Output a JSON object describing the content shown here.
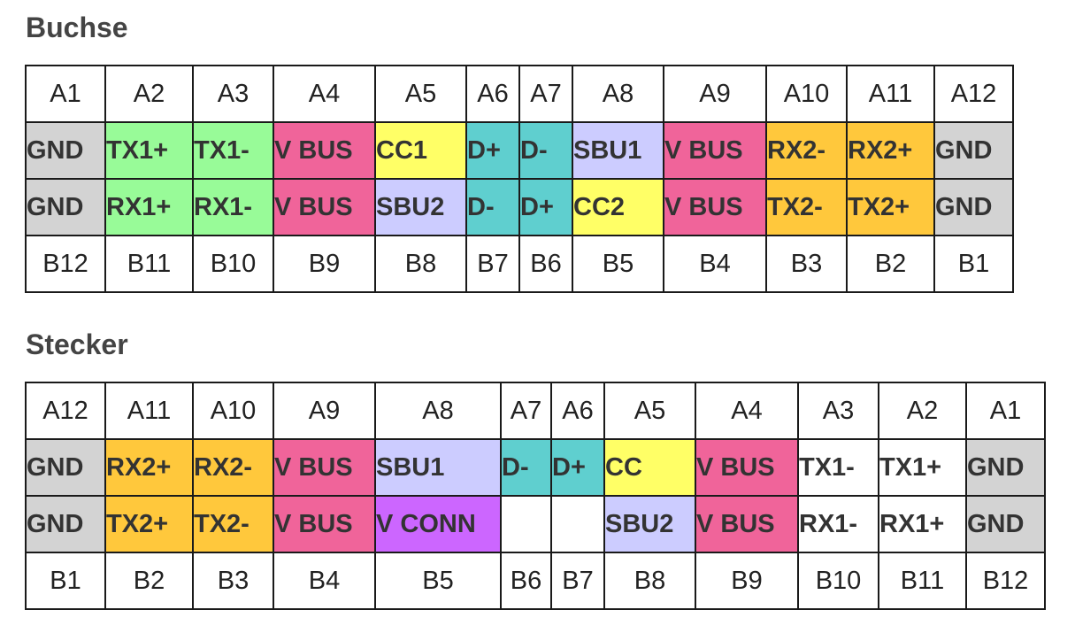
{
  "buchse": {
    "title": "Buchse",
    "top_numbers": [
      "A1",
      "A2",
      "A3",
      "A4",
      "A5",
      "A6",
      "A7",
      "A8",
      "A9",
      "A10",
      "A11",
      "A12"
    ],
    "row_a": [
      {
        "text": "GND",
        "color": "#d3d3d3"
      },
      {
        "text": "TX1+",
        "color": "#98fb98"
      },
      {
        "text": "TX1-",
        "color": "#98fb98"
      },
      {
        "text": "V BUS",
        "color": "#f0649a"
      },
      {
        "text": "CC1",
        "color": "#ffff66"
      },
      {
        "text": "D+",
        "color": "#5fcfcf"
      },
      {
        "text": "D-",
        "color": "#5fcfcf"
      },
      {
        "text": "SBU1",
        "color": "#ccccff"
      },
      {
        "text": "V BUS",
        "color": "#f0649a"
      },
      {
        "text": "RX2-",
        "color": "#ffc83c"
      },
      {
        "text": "RX2+",
        "color": "#ffc83c"
      },
      {
        "text": "GND",
        "color": "#d3d3d3"
      }
    ],
    "row_b": [
      {
        "text": "GND",
        "color": "#d3d3d3"
      },
      {
        "text": "RX1+",
        "color": "#98fb98"
      },
      {
        "text": "RX1-",
        "color": "#98fb98"
      },
      {
        "text": "V BUS",
        "color": "#f0649a"
      },
      {
        "text": "SBU2",
        "color": "#ccccff"
      },
      {
        "text": "D-",
        "color": "#5fcfcf"
      },
      {
        "text": "D+",
        "color": "#5fcfcf"
      },
      {
        "text": "CC2",
        "color": "#ffff66"
      },
      {
        "text": "V BUS",
        "color": "#f0649a"
      },
      {
        "text": "TX2-",
        "color": "#ffc83c"
      },
      {
        "text": "TX2+",
        "color": "#ffc83c"
      },
      {
        "text": "GND",
        "color": "#d3d3d3"
      }
    ],
    "bottom_numbers": [
      "B12",
      "B11",
      "B10",
      "B9",
      "B8",
      "B7",
      "B6",
      "B5",
      "B4",
      "B3",
      "B2",
      "B1"
    ]
  },
  "stecker": {
    "title": "Stecker",
    "top_numbers": [
      "A12",
      "A11",
      "A10",
      "A9",
      "A8",
      "A7",
      "A6",
      "A5",
      "A4",
      "A3",
      "A2",
      "A1"
    ],
    "row_a": [
      {
        "text": "GND",
        "color": "#d3d3d3"
      },
      {
        "text": "RX2+",
        "color": "#ffc83c"
      },
      {
        "text": "RX2-",
        "color": "#ffc83c"
      },
      {
        "text": "V BUS",
        "color": "#f0649a"
      },
      {
        "text": "SBU1",
        "color": "#ccccff"
      },
      {
        "text": "D-",
        "color": "#5fcfcf"
      },
      {
        "text": "D+",
        "color": "#5fcfcf"
      },
      {
        "text": "CC",
        "color": "#ffff66"
      },
      {
        "text": "V BUS",
        "color": "#f0649a"
      },
      {
        "text": "TX1-",
        "color": "#ffffff"
      },
      {
        "text": "TX1+",
        "color": "#ffffff"
      },
      {
        "text": "GND",
        "color": "#d3d3d3"
      }
    ],
    "row_b": [
      {
        "text": "GND",
        "color": "#d3d3d3"
      },
      {
        "text": "TX2+",
        "color": "#ffc83c"
      },
      {
        "text": "TX2-",
        "color": "#ffc83c"
      },
      {
        "text": "V BUS",
        "color": "#f0649a"
      },
      {
        "text": "V CONN",
        "color": "#cc66ff"
      },
      {
        "text": "",
        "color": "#ffffff"
      },
      {
        "text": "",
        "color": "#ffffff"
      },
      {
        "text": "SBU2",
        "color": "#ccccff"
      },
      {
        "text": "V BUS",
        "color": "#f0649a"
      },
      {
        "text": "RX1-",
        "color": "#ffffff"
      },
      {
        "text": "RX1+",
        "color": "#ffffff"
      },
      {
        "text": "GND",
        "color": "#d3d3d3"
      }
    ],
    "bottom_numbers": [
      "B1",
      "B2",
      "B3",
      "B4",
      "B5",
      "B6",
      "B7",
      "B8",
      "B9",
      "B10",
      "B11",
      "B12"
    ]
  }
}
